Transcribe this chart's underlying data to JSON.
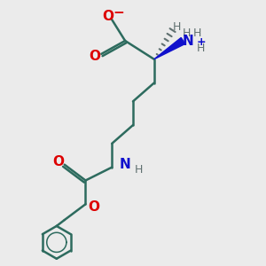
{
  "background_color": "#ebebeb",
  "bond_color": "#2d6b5e",
  "bond_width": 1.8,
  "o_color": "#dd0000",
  "n_color": "#1010cc",
  "h_color": "#607070",
  "fig_width": 3.0,
  "fig_height": 3.0,
  "dpi": 100,
  "xlim": [
    0,
    10
  ],
  "ylim": [
    0,
    10
  ]
}
